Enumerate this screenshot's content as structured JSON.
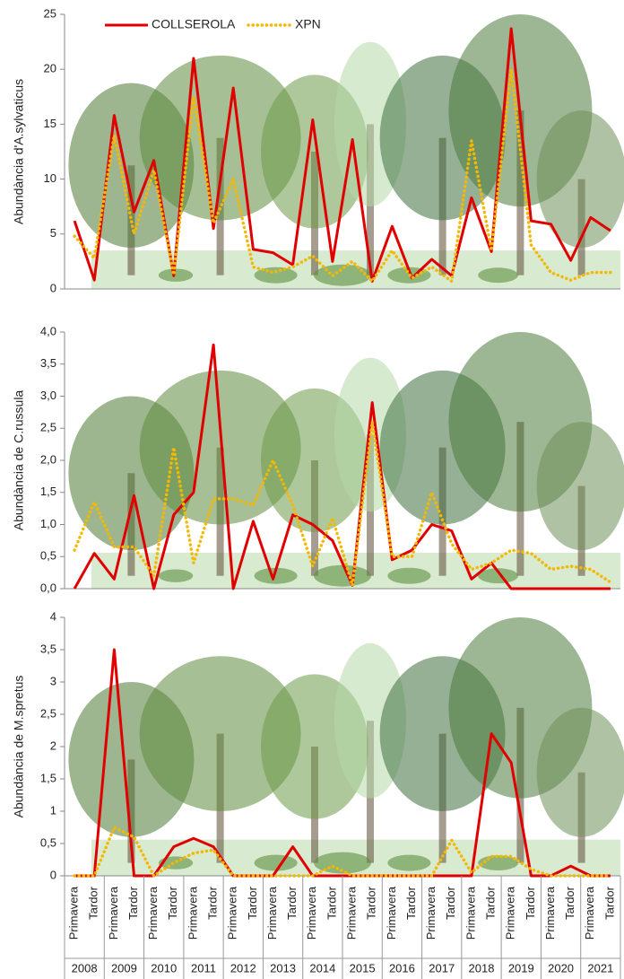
{
  "chart_data": [
    {
      "type": "line",
      "ylabel": "Abundància d'A.sylvaticus",
      "ylim": [
        0,
        25
      ],
      "yticks": [
        0,
        5,
        10,
        15,
        20,
        25
      ],
      "legend": "top-left",
      "series": [
        {
          "name": "COLLSEROLA",
          "color": "#e00000",
          "style": "solid",
          "values": [
            6.2,
            0.8,
            15.8,
            7.0,
            11.7,
            1.2,
            21.0,
            5.5,
            18.3,
            3.6,
            3.3,
            2.2,
            15.4,
            2.5,
            13.6,
            0.7,
            5.7,
            1.0,
            2.7,
            1.2,
            8.3,
            3.4,
            23.7,
            6.2,
            5.9,
            2.6,
            6.5,
            5.3
          ]
        },
        {
          "name": "XPN",
          "color": "#f5b800",
          "style": "dotted",
          "values": [
            4.8,
            2.8,
            14.0,
            5.0,
            10.8,
            1.3,
            17.5,
            6.0,
            10.0,
            2.0,
            1.5,
            2.0,
            3.0,
            1.2,
            2.5,
            0.7,
            3.5,
            1.0,
            2.0,
            0.7,
            13.5,
            3.5,
            20.0,
            4.0,
            1.5,
            0.8,
            1.5,
            1.5
          ]
        }
      ]
    },
    {
      "type": "line",
      "ylabel": "Abundància de C.russula",
      "ylim": [
        0,
        4
      ],
      "yticks": [
        {
          "value": 0,
          "label": "0,0"
        },
        {
          "value": 0.5,
          "label": "0,5"
        },
        {
          "value": 1,
          "label": "1,0"
        },
        {
          "value": 1.5,
          "label": "1,5"
        },
        {
          "value": 2,
          "label": "2,0"
        },
        {
          "value": 2.5,
          "label": "2,5"
        },
        {
          "value": 3,
          "label": "3,0"
        },
        {
          "value": 3.5,
          "label": "3,5"
        },
        {
          "value": 4,
          "label": "4,0"
        }
      ],
      "series": [
        {
          "color": "#e00000",
          "style": "solid",
          "values": [
            0,
            0.55,
            0.15,
            1.45,
            0,
            1.15,
            1.5,
            3.8,
            0,
            1.05,
            0.15,
            1.15,
            1.0,
            0.75,
            0.05,
            2.9,
            0.45,
            0.6,
            1.0,
            0.9,
            0.15,
            0.4,
            0,
            0,
            0,
            0,
            0,
            0
          ]
        },
        {
          "color": "#f5b800",
          "style": "dotted",
          "values": [
            0.6,
            1.35,
            0.65,
            0.65,
            0.2,
            2.2,
            0.4,
            1.4,
            1.4,
            1.3,
            2.0,
            1.3,
            0.35,
            1.1,
            0.05,
            2.6,
            0.5,
            0.5,
            1.5,
            0.7,
            0.3,
            0.4,
            0.6,
            0.55,
            0.3,
            0.35,
            0.3,
            0.1
          ]
        }
      ]
    },
    {
      "type": "line",
      "ylabel": "Abundància de M.spretus",
      "ylim": [
        0,
        4
      ],
      "yticks": [
        0,
        {
          "value": 0.5,
          "label": "0,5"
        },
        1,
        {
          "value": 1.5,
          "label": "1,5"
        },
        2,
        {
          "value": 2.5,
          "label": "2,5"
        },
        3,
        {
          "value": 3.5,
          "label": "3,5"
        },
        4
      ],
      "series": [
        {
          "color": "#e00000",
          "style": "solid",
          "values": [
            0,
            0,
            3.5,
            0,
            0,
            0.45,
            0.58,
            0.45,
            0,
            0,
            0,
            0.45,
            0,
            0,
            0,
            0,
            0,
            0,
            0,
            0,
            0,
            2.2,
            1.75,
            0,
            0,
            0.15,
            0,
            0
          ]
        },
        {
          "color": "#f5b800",
          "style": "dotted",
          "values": [
            0,
            0,
            0.75,
            0.6,
            0,
            0.2,
            0.35,
            0.4,
            0,
            0,
            0,
            0,
            0,
            0.15,
            0,
            0,
            0,
            0,
            0,
            0.55,
            0.05,
            0.3,
            0.3,
            0.1,
            0,
            0,
            0,
            0
          ]
        }
      ]
    }
  ],
  "x_axis": {
    "categories": [
      "Primavera",
      "Tardor",
      "Primavera",
      "Tardor",
      "Primavera",
      "Tardor",
      "Primavera",
      "Tardor",
      "Primavera",
      "Tardor",
      "Primavera",
      "Tardor",
      "Primavera",
      "Tardor",
      "Primavera",
      "Tardor",
      "Primavera",
      "Tardor",
      "Primavera",
      "Tardor",
      "Primavera",
      "Tardor",
      "Primavera",
      "Tardor",
      "Primavera",
      "Tardor",
      "Primavera",
      "Tardor"
    ],
    "groups": [
      "2008",
      "2009",
      "2010",
      "2011",
      "2012",
      "2013",
      "2014",
      "2015",
      "2016",
      "2017",
      "2018",
      "2019",
      "2020",
      "2021"
    ]
  }
}
